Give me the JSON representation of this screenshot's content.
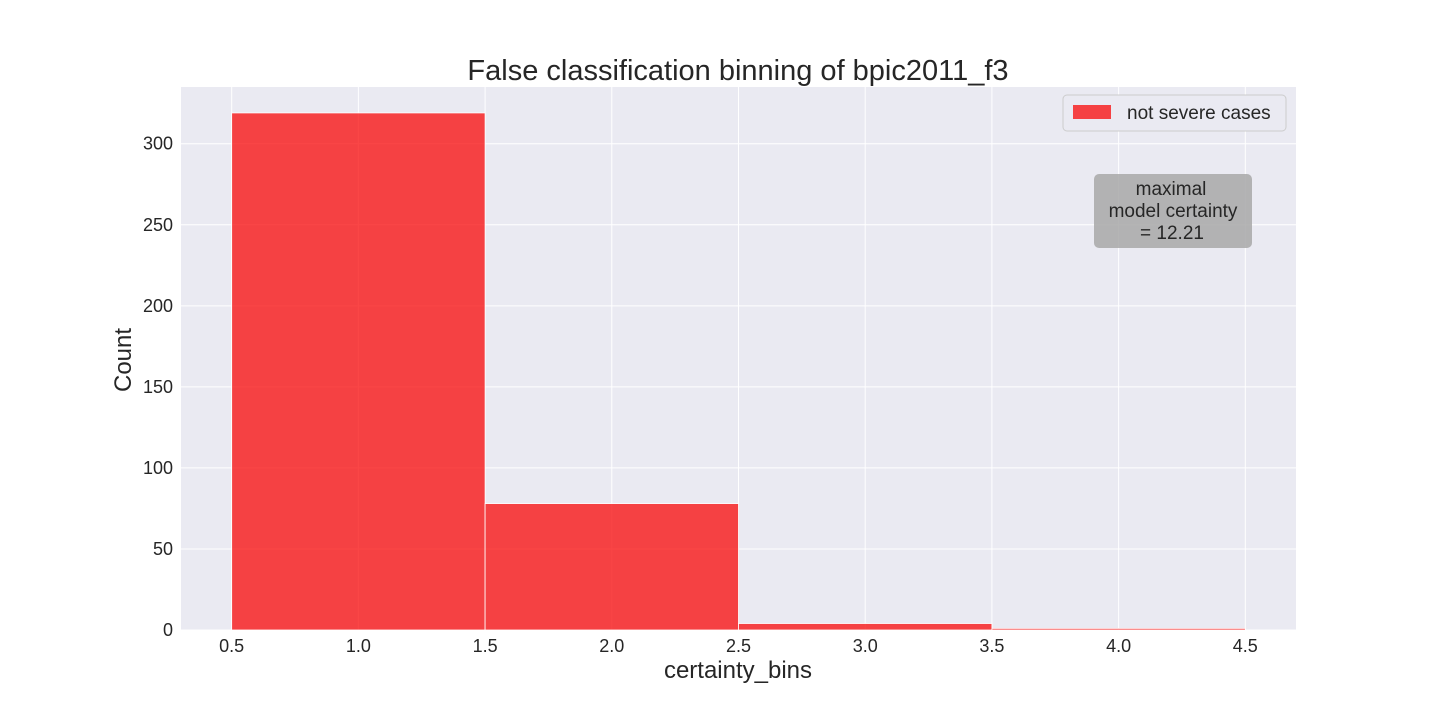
{
  "chart_data": {
    "type": "bar",
    "title": "False classification binning of bpic2011_f3",
    "xlabel": "certainty_bins",
    "ylabel": "Count",
    "xlim": [
      0.3,
      4.7
    ],
    "ylim": [
      0,
      335
    ],
    "x_ticks": [
      "0.5",
      "1.0",
      "1.5",
      "2.0",
      "2.5",
      "3.0",
      "3.5",
      "4.0",
      "4.5"
    ],
    "y_ticks": [
      "0",
      "50",
      "100",
      "150",
      "200",
      "250",
      "300"
    ],
    "grid": true,
    "legend_position": "top-right",
    "series": [
      {
        "name": "not severe cases",
        "color": "#f80808",
        "bins": [
          {
            "x_start": 0.5,
            "x_end": 1.5,
            "value": 319
          },
          {
            "x_start": 1.5,
            "x_end": 2.5,
            "value": 78
          },
          {
            "x_start": 2.5,
            "x_end": 3.5,
            "value": 4
          },
          {
            "x_start": 3.5,
            "x_end": 4.5,
            "value": 1
          }
        ]
      }
    ],
    "annotation": {
      "lines": [
        "maximal",
        "model certainty",
        "= 12.21"
      ]
    }
  },
  "colors": {
    "plot_background": "#eaeaf2",
    "grid": "#ffffff",
    "bar": "#f80808",
    "annotation_box": "#a8a8a8"
  }
}
